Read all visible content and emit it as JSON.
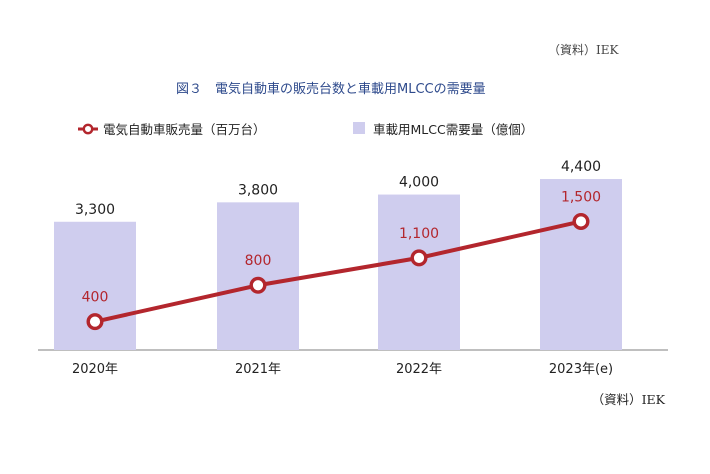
{
  "header": {
    "clipped_source": "（資料）IEK"
  },
  "chart_data": {
    "type": "bar",
    "title": "図３　電気自動車の販売台数と車載用MLCCの需要量",
    "categories": [
      "2020年",
      "2021年",
      "2022年",
      "2023年(e)"
    ],
    "series": [
      {
        "name": "車載用MLCC需要量（億個）",
        "type": "bar",
        "values": [
          3300,
          3800,
          4000,
          4400
        ],
        "labels": [
          "3,300",
          "3,800",
          "4,000",
          "4,400"
        ],
        "color": "#cfcdee"
      },
      {
        "name": "電気自動車販売量（百万台）",
        "type": "line",
        "values": [
          400,
          800,
          1100,
          1500
        ],
        "labels": [
          "400",
          "800",
          "1,100",
          "1,500"
        ],
        "color": "#b3262d"
      }
    ],
    "legend_position": "top-left",
    "grid": false,
    "ylim": [
      0,
      5000
    ]
  },
  "footer": {
    "source": "（資料）IEK"
  }
}
